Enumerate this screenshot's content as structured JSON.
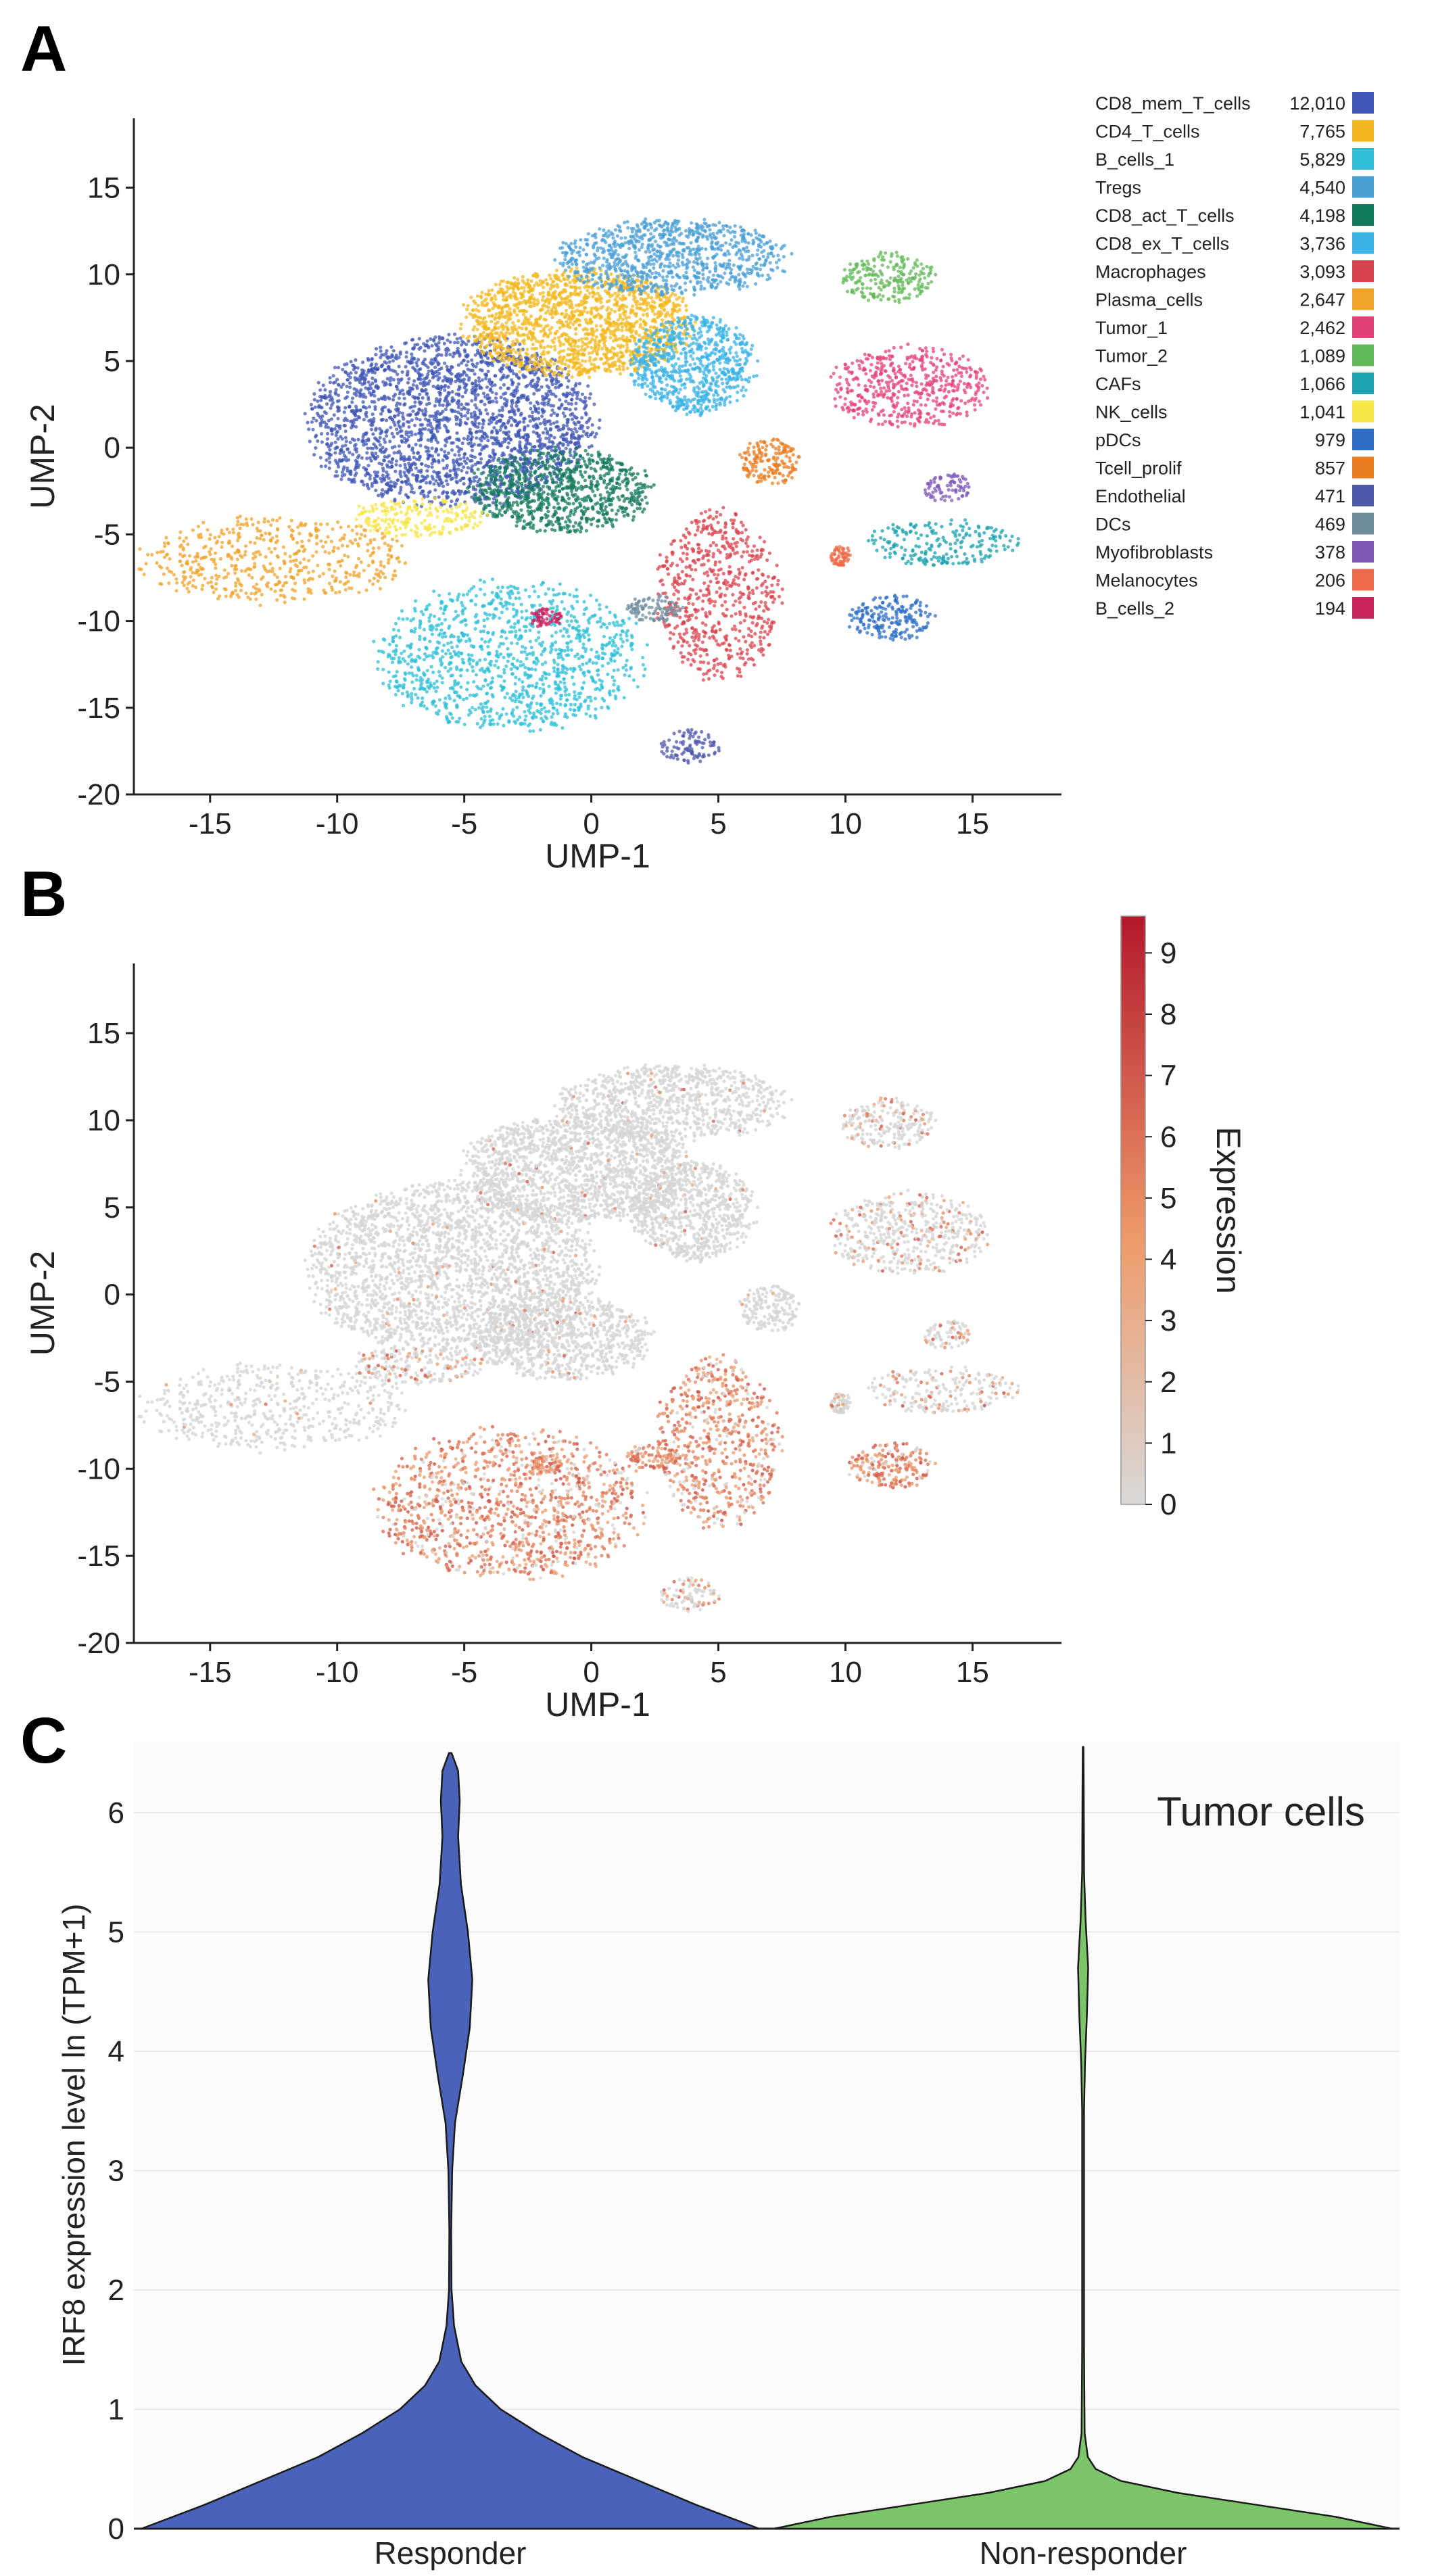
{
  "panels": {
    "a": "A",
    "b": "B",
    "c": "C"
  },
  "chart_data": [
    {
      "type": "scatter",
      "title": "",
      "xlabel": "UMP-1",
      "ylabel": "UMP-2",
      "xlim": [
        -18,
        18.5
      ],
      "ylim": [
        -20,
        19
      ],
      "xticks": [
        -15,
        -10,
        -5,
        0,
        5,
        10,
        15
      ],
      "yticks": [
        15,
        10,
        5,
        0,
        -5,
        -10,
        -15,
        -20
      ],
      "legend": [
        {
          "label": "CD8_mem_T_cells",
          "count": "12,010",
          "color": "#3f55b4",
          "cx": -5.5,
          "cy": 1.5,
          "rx": 6.0,
          "ry": 5.2
        },
        {
          "label": "CD4_T_cells",
          "count": "7,765",
          "color": "#f3b81f",
          "cx": -0.5,
          "cy": 7.2,
          "rx": 4.8,
          "ry": 3.3
        },
        {
          "label": "B_cells_1",
          "count": "5,829",
          "color": "#2ebfd7",
          "cx": -3.2,
          "cy": -12.0,
          "rx": 5.6,
          "ry": 4.6
        },
        {
          "label": "Tregs",
          "count": "4,540",
          "color": "#4a9fd5",
          "cx": 3.2,
          "cy": 11.0,
          "rx": 4.8,
          "ry": 2.3
        },
        {
          "label": "CD8_act_T_cells",
          "count": "4,198",
          "color": "#147a5e",
          "cx": -1.2,
          "cy": -2.5,
          "rx": 3.8,
          "ry": 2.6
        },
        {
          "label": "CD8_ex_T_cells",
          "count": "3,736",
          "color": "#3bb3e6",
          "cx": 4.0,
          "cy": 4.8,
          "rx": 2.6,
          "ry": 3.0
        },
        {
          "label": "Macrophages",
          "count": "3,093",
          "color": "#d9434e",
          "cx": 5.0,
          "cy": -8.5,
          "rx": 2.6,
          "ry": 5.2
        },
        {
          "label": "Plasma_cells",
          "count": "2,647",
          "color": "#f0a32a",
          "cx": -12.5,
          "cy": -6.5,
          "rx": 5.6,
          "ry": 2.7
        },
        {
          "label": "Tumor_1",
          "count": "2,462",
          "color": "#e2427a",
          "cx": 12.5,
          "cy": 3.5,
          "rx": 3.3,
          "ry": 2.5
        },
        {
          "label": "Tumor_2",
          "count": "1,089",
          "color": "#63b85a",
          "cx": 11.7,
          "cy": 9.8,
          "rx": 2.0,
          "ry": 1.6
        },
        {
          "label": "CAFs",
          "count": "1,066",
          "color": "#1aa2ae",
          "cx": 13.8,
          "cy": -5.5,
          "rx": 3.2,
          "ry": 1.4
        },
        {
          "label": "NK_cells",
          "count": "1,041",
          "color": "#f6e646",
          "cx": -6.8,
          "cy": -4.0,
          "rx": 2.8,
          "ry": 1.2
        },
        {
          "label": "pDCs",
          "count": "979",
          "color": "#2f6fc5",
          "cx": 11.8,
          "cy": -9.8,
          "rx": 1.8,
          "ry": 1.4
        },
        {
          "label": "Tcell_prolif",
          "count": "857",
          "color": "#e97d24",
          "cx": 7.0,
          "cy": -0.8,
          "rx": 1.3,
          "ry": 1.4
        },
        {
          "label": "Endothelial",
          "count": "471",
          "color": "#4f57ab",
          "cx": 3.8,
          "cy": -17.2,
          "rx": 1.4,
          "ry": 1.0
        },
        {
          "label": "DCs",
          "count": "469",
          "color": "#6f8c9d",
          "cx": 2.5,
          "cy": -9.3,
          "rx": 1.2,
          "ry": 0.8
        },
        {
          "label": "Myofibroblasts",
          "count": "378",
          "color": "#7e57b7",
          "cx": 14.0,
          "cy": -2.3,
          "rx": 1.0,
          "ry": 0.9
        },
        {
          "label": "Melanocytes",
          "count": "206",
          "color": "#ec6a48",
          "cx": 9.8,
          "cy": -6.2,
          "rx": 0.4,
          "ry": 0.7
        },
        {
          "label": "B_cells_2",
          "count": "194",
          "color": "#c8235c",
          "cx": -1.8,
          "cy": -9.8,
          "rx": 0.7,
          "ry": 0.6
        }
      ]
    },
    {
      "type": "scatter",
      "title": "",
      "xlabel": "UMP-1",
      "ylabel": "UMP-2",
      "xlim": [
        -18,
        18.5
      ],
      "ylim": [
        -20,
        19
      ],
      "xticks": [
        -15,
        -10,
        -5,
        0,
        5,
        10,
        15
      ],
      "yticks": [
        15,
        10,
        5,
        0,
        -5,
        -10,
        -15,
        -20
      ],
      "colorbar": {
        "label": "Expression",
        "range": [
          0,
          9.6
        ],
        "ticks": [
          9,
          8,
          7,
          6,
          5,
          4,
          3,
          2,
          1,
          0
        ],
        "low_color": "#d9d9d9",
        "mid_color": "#ee9b6b",
        "high_color": "#b2182b"
      },
      "high_expression_clusters": [
        "B_cells_1",
        "pDCs",
        "Macrophages",
        "DCs",
        "B_cells_2"
      ]
    },
    {
      "type": "violin",
      "title": "Tumor cells",
      "xlabel": "",
      "ylabel": "IRF8 expression level ln (TPM+1)",
      "ylim": [
        0,
        6.6
      ],
      "yticks": [
        0,
        1,
        2,
        3,
        4,
        5,
        6
      ],
      "categories": [
        "Responder",
        "Non-responder"
      ],
      "series": [
        {
          "name": "Responder",
          "color": "#4a63b8",
          "profile": [
            [
              0,
              0.98
            ],
            [
              0.2,
              0.78
            ],
            [
              0.4,
              0.6
            ],
            [
              0.6,
              0.42
            ],
            [
              0.8,
              0.28
            ],
            [
              1.0,
              0.16
            ],
            [
              1.2,
              0.08
            ],
            [
              1.4,
              0.035
            ],
            [
              1.7,
              0.012
            ],
            [
              2.0,
              0.004
            ],
            [
              2.5,
              0.003
            ],
            [
              3.0,
              0.006
            ],
            [
              3.4,
              0.015
            ],
            [
              3.8,
              0.04
            ],
            [
              4.2,
              0.062
            ],
            [
              4.6,
              0.07
            ],
            [
              5.0,
              0.056
            ],
            [
              5.4,
              0.034
            ],
            [
              5.8,
              0.025
            ],
            [
              6.1,
              0.03
            ],
            [
              6.35,
              0.025
            ],
            [
              6.5,
              0.004
            ]
          ]
        },
        {
          "name": "Non-responder",
          "color": "#7cc46a",
          "profile": [
            [
              0,
              0.98
            ],
            [
              0.1,
              0.8
            ],
            [
              0.2,
              0.55
            ],
            [
              0.3,
              0.3
            ],
            [
              0.4,
              0.12
            ],
            [
              0.5,
              0.04
            ],
            [
              0.6,
              0.015
            ],
            [
              0.8,
              0.005
            ],
            [
              1.5,
              0.003
            ],
            [
              3.5,
              0.003
            ],
            [
              3.9,
              0.006
            ],
            [
              4.3,
              0.012
            ],
            [
              4.7,
              0.016
            ],
            [
              5.1,
              0.008
            ],
            [
              5.5,
              0.003
            ],
            [
              6.2,
              0.002
            ],
            [
              6.55,
              0.001
            ]
          ]
        }
      ]
    }
  ]
}
